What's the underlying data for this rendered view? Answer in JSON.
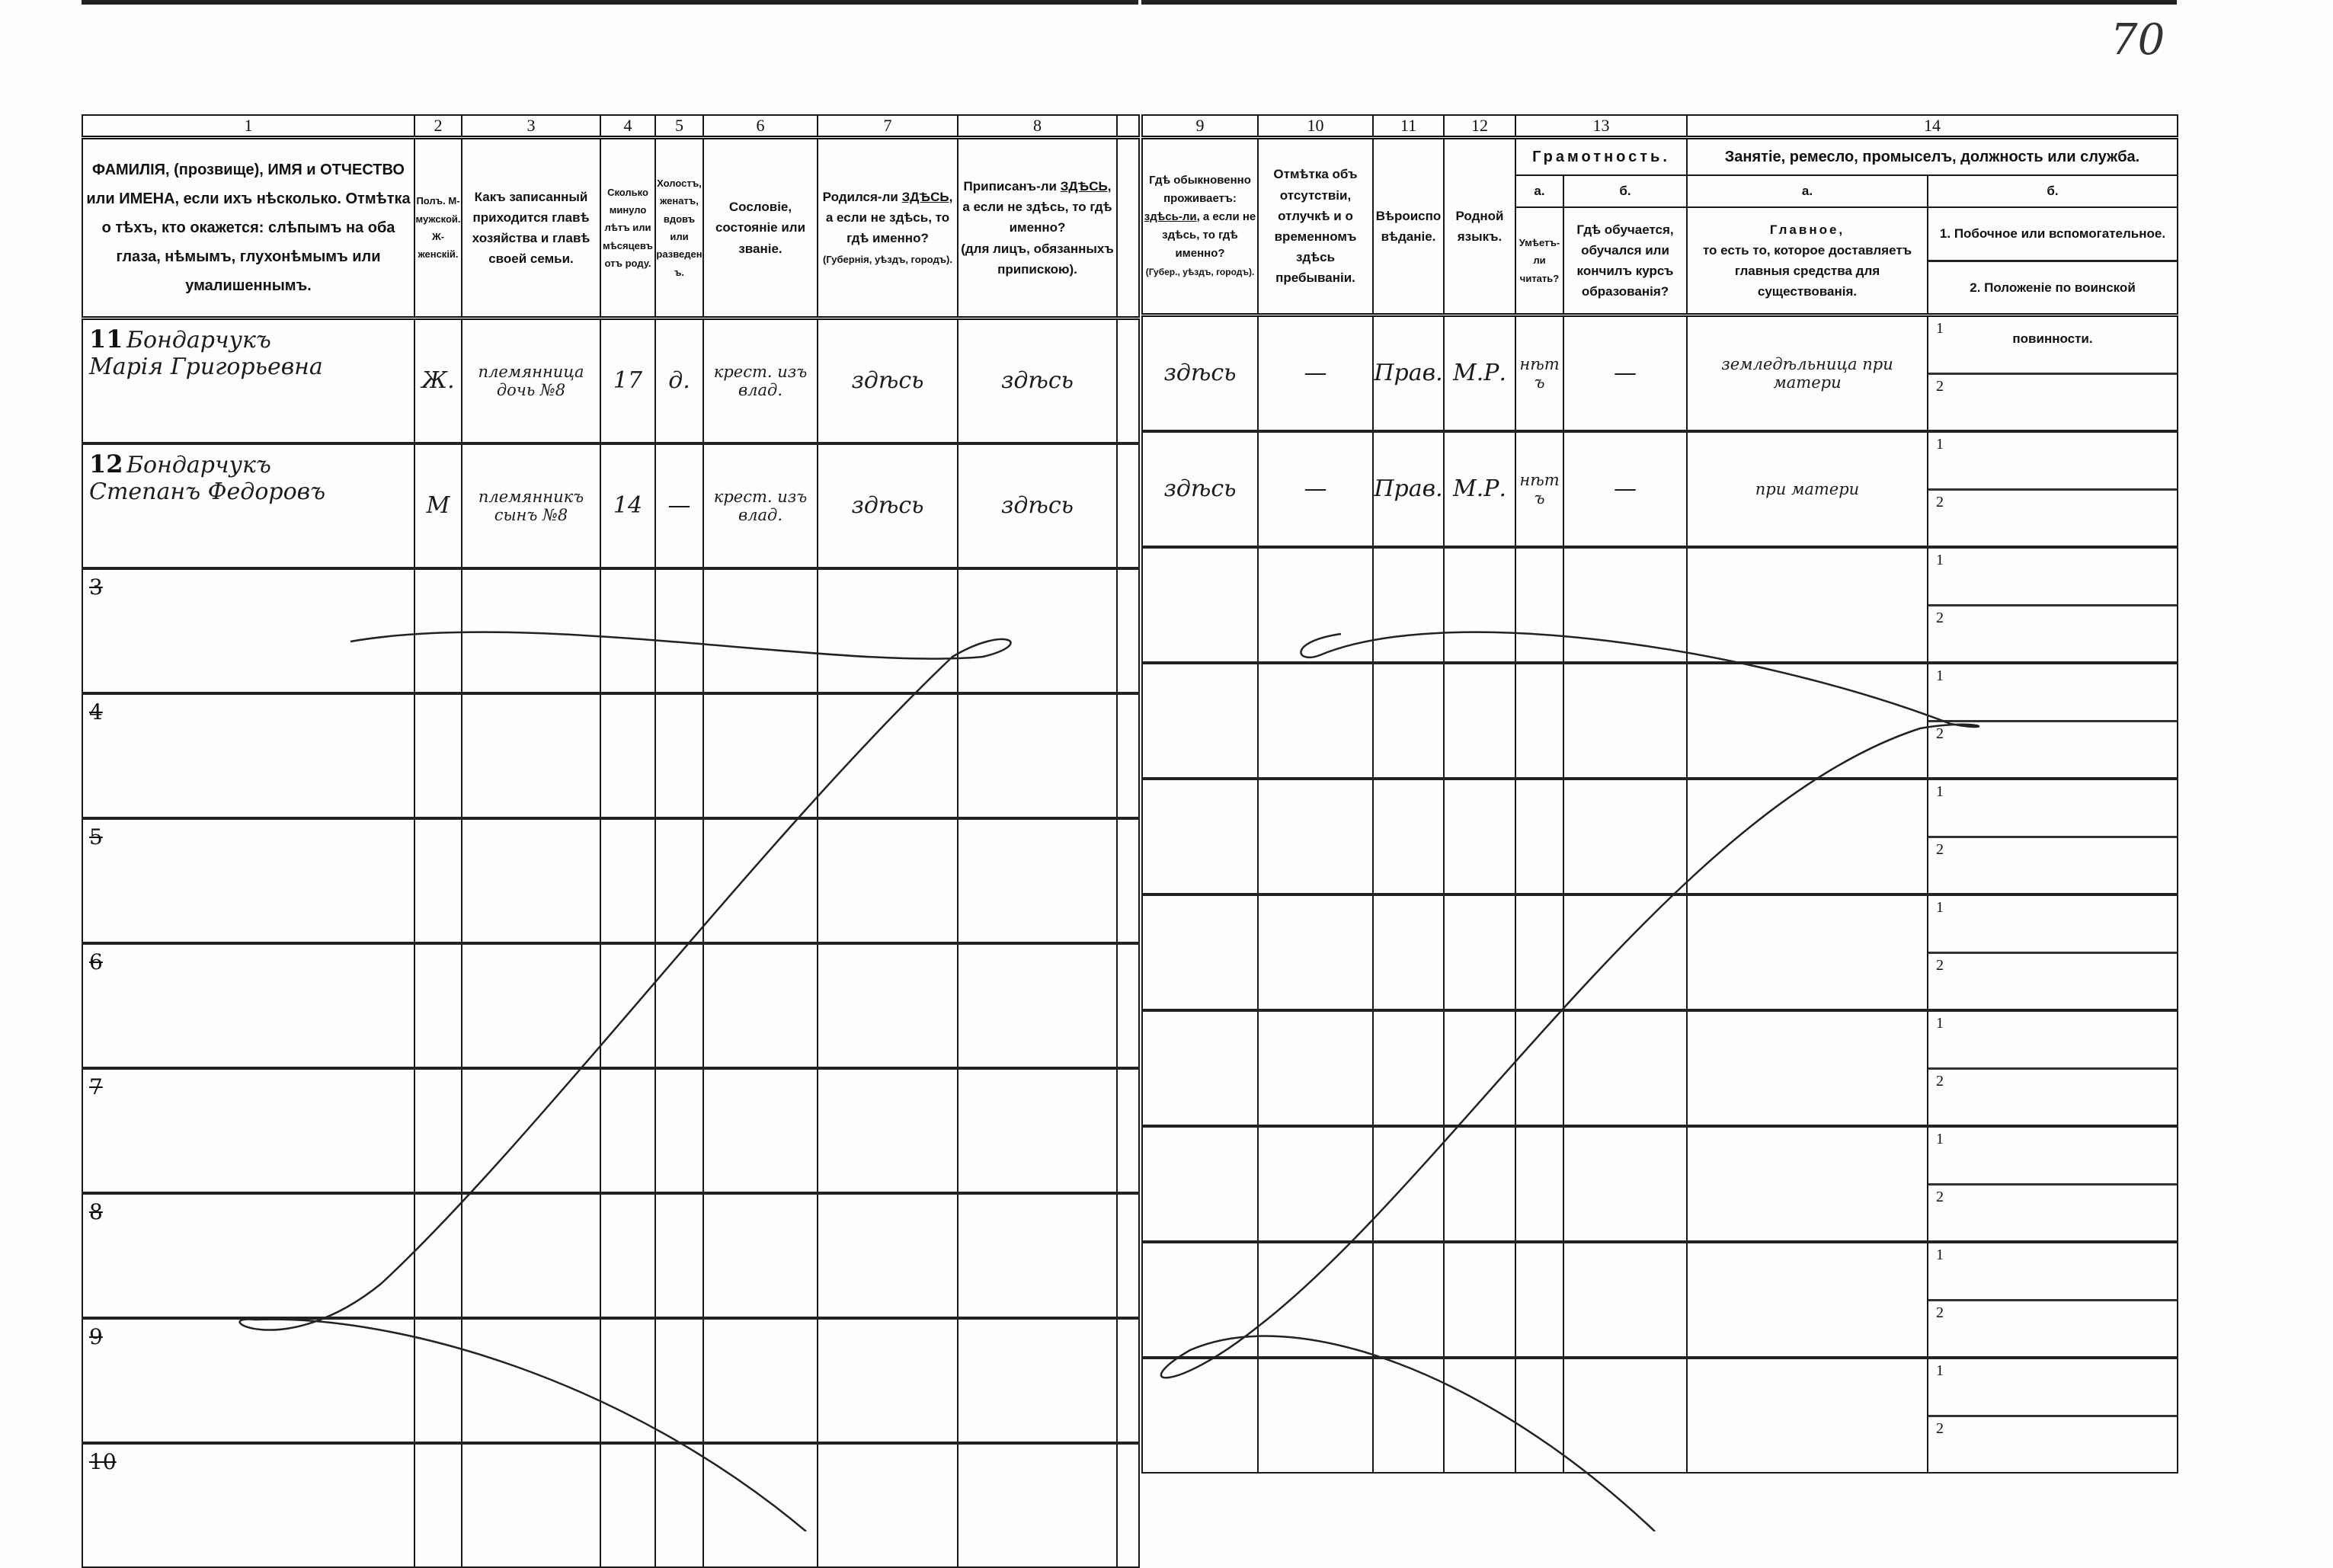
{
  "page_number": "70",
  "left": {
    "col_numbers": [
      "1",
      "2",
      "3",
      "4",
      "5",
      "6",
      "7",
      "8",
      ""
    ],
    "headers": {
      "name": "ФАМИЛІЯ, (прозвище), ИМЯ и ОТЧЕСТВО или ИМЕНА, если ихъ нѣсколько. Отмѣтка о тѣхъ, кто окажется: слѣпымъ на оба глаза, нѣмымъ, глухонѣмымъ или умалишеннымъ.",
      "sex": "Полъ. М-мужской. Ж-женскій.",
      "relation": "Какъ записанный приходится главѣ хозяйства и главѣ своей семьи.",
      "age": "Сколько минуло лѣтъ или мѣсяцевъ отъ роду.",
      "marital": "Холостъ, женатъ, вдовъ или разведенъ.",
      "estate": "Сословіе, состояніе или званіе.",
      "born_a": "Родился-ли ",
      "born_u": "ЗДѢСЬ,",
      "born_b": " а если не здѣсь, то гдѣ именно?",
      "born_note": "(Губернія, уѣздъ, городъ).",
      "reg_a": "Приписанъ-ли ",
      "reg_u": "ЗДѢСЬ,",
      "reg_b": " а если не здѣсь, то гдѣ именно?",
      "reg_note": "(для лицъ, обязанныхъ припискою)."
    }
  },
  "right": {
    "col_numbers": [
      "9",
      "10",
      "11",
      "12",
      "13",
      "14"
    ],
    "headers": {
      "resides_a": "Гдѣ обыкновенно проживаетъ: ",
      "resides_u": "здѣсь-ли,",
      "resides_b": " а если не здѣсь, то гдѣ именно?",
      "resides_note": "(Губер., уѣздъ, городъ).",
      "absence": "Отмѣтка объ отсутствіи, отлучкѣ и о временномъ здѣсь пребываніи.",
      "religion": "Вѣроисповѣданіе.",
      "language": "Родной языкъ.",
      "literacy": "Грамотность.",
      "literacy_a": "а.",
      "literacy_b": "б.",
      "can_read": "Умѣетъ-ли читать?",
      "education": "Гдѣ обучается, обучался или кончилъ курсъ образованія?",
      "occupation": "Занятіе, ремесло, промыселъ, должность или служба.",
      "occ_a": "а.",
      "occ_b": "б.",
      "main_title": "Главное,",
      "main_desc": "то есть то, которое доставляетъ главныя средства для существованія.",
      "secondary": "1. Побочное или вспомогательное.",
      "military": "2. Положеніе по воинской повинности."
    }
  },
  "sub_labels": [
    "1",
    "2"
  ],
  "rows": [
    {
      "num": "11",
      "struck": false,
      "surname": "Бондарчукъ",
      "name": "Марія Григорьевна",
      "sex": "Ж.",
      "relation": "племянница дочь №8",
      "age": "17",
      "marital": "д.",
      "estate": "крест. изъ влад.",
      "born": "здѣсь",
      "registered": "здѣсь",
      "resides": "здѣсь",
      "absence": "—",
      "religion": "Прав.",
      "language": "М.Р.",
      "literate": "нѣтъ",
      "education": "—",
      "occupation": "земледѣльница при матери"
    },
    {
      "num": "12",
      "struck": false,
      "surname": "Бондарчукъ",
      "name": "Степанъ Федоровъ",
      "sex": "М",
      "relation": "племянникъ сынъ №8",
      "age": "14",
      "marital": "—",
      "estate": "крест. изъ влад.",
      "born": "здѣсь",
      "registered": "здѣсь",
      "resides": "здѣсь",
      "absence": "—",
      "religion": "Прав.",
      "language": "М.Р.",
      "literate": "нѣтъ",
      "education": "—",
      "occupation": "при матери"
    },
    {
      "num": "3",
      "struck": true
    },
    {
      "num": "4",
      "struck": true
    },
    {
      "num": "5",
      "struck": true
    },
    {
      "num": "6",
      "struck": true
    },
    {
      "num": "7",
      "struck": true
    },
    {
      "num": "8",
      "struck": true
    },
    {
      "num": "9",
      "struck": true
    },
    {
      "num": "10",
      "struck": true
    }
  ]
}
